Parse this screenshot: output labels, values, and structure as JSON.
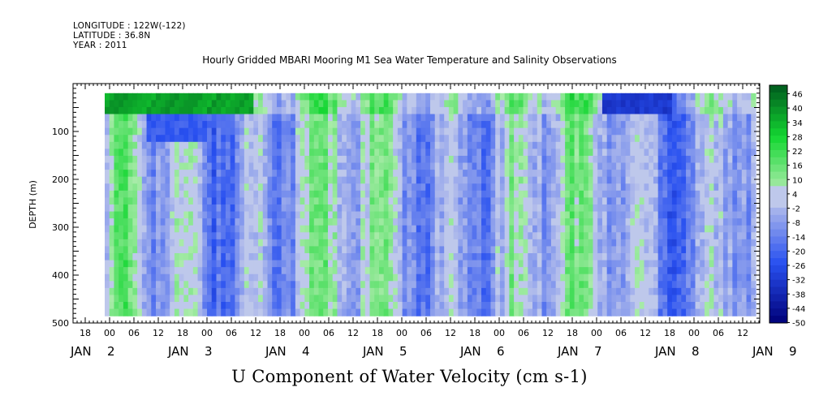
{
  "header": {
    "longitude": "LONGITUDE : 122W(-122)",
    "latitude": "LATITUDE : 36.8N",
    "year": "YEAR : 2011"
  },
  "chart_data": {
    "type": "heatmap",
    "title": "Hourly Gridded MBARI Mooring M1 Sea Water Temperature and Salinity Observations",
    "xlabel": "U Component of Water Velocity (cm s-1)",
    "ylabel": "DEPTH (m)",
    "ylim": [
      500,
      0
    ],
    "y_ticks": [
      "100",
      "200",
      "300",
      "400",
      "500"
    ],
    "x_hour_ticks": [
      "18",
      "00",
      "06",
      "12",
      "18",
      "00",
      "06",
      "12",
      "18",
      "00",
      "06",
      "12",
      "18",
      "00",
      "06",
      "12",
      "18",
      "00",
      "06",
      "12",
      "18",
      "00",
      "06",
      "12",
      "18",
      "00",
      "06",
      "12",
      "18",
      "00",
      "06",
      "12"
    ],
    "x_day_ticks": [
      {
        "month": "JAN",
        "day": "2"
      },
      {
        "month": "JAN",
        "day": "3"
      },
      {
        "month": "JAN",
        "day": "4"
      },
      {
        "month": "JAN",
        "day": "5"
      },
      {
        "month": "JAN",
        "day": "6"
      },
      {
        "month": "JAN",
        "day": "7"
      },
      {
        "month": "JAN",
        "day": "8"
      },
      {
        "month": "JAN",
        "day": "9"
      }
    ],
    "colorbar_levels": [
      "46",
      "40",
      "34",
      "28",
      "22",
      "16",
      "10",
      "4",
      "-2",
      "-8",
      "-14",
      "-20",
      "-26",
      "-32",
      "-38",
      "-44",
      "-50"
    ],
    "value_range": [
      -50,
      46
    ],
    "depth_range_m": [
      20,
      485
    ],
    "colors": {
      "positive": "#00cc44",
      "negative": "#3355ee",
      "neutral": "#aab4ee"
    },
    "grid": false
  }
}
